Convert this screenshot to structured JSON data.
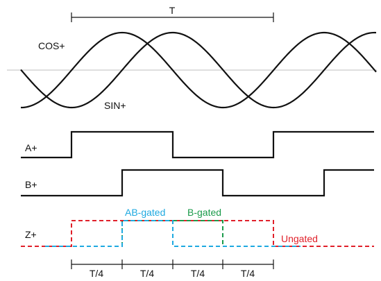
{
  "period_label": "T",
  "traces": {
    "cos": "COS+",
    "sin": "SIN+",
    "a": "A+",
    "b": "B+",
    "z": "Z+"
  },
  "z_variants": {
    "ungated": "Ungated",
    "ab_gated": "AB-gated",
    "b_gated": "B-gated"
  },
  "quarter_labels": [
    "T/4",
    "T/4",
    "T/4",
    "T/4"
  ],
  "colors": {
    "trace": "#111111",
    "axis": "#bdbdbd",
    "ungated": "#e0202a",
    "ab_gated": "#1ea9e0",
    "b_gated": "#1a9a4a"
  }
}
